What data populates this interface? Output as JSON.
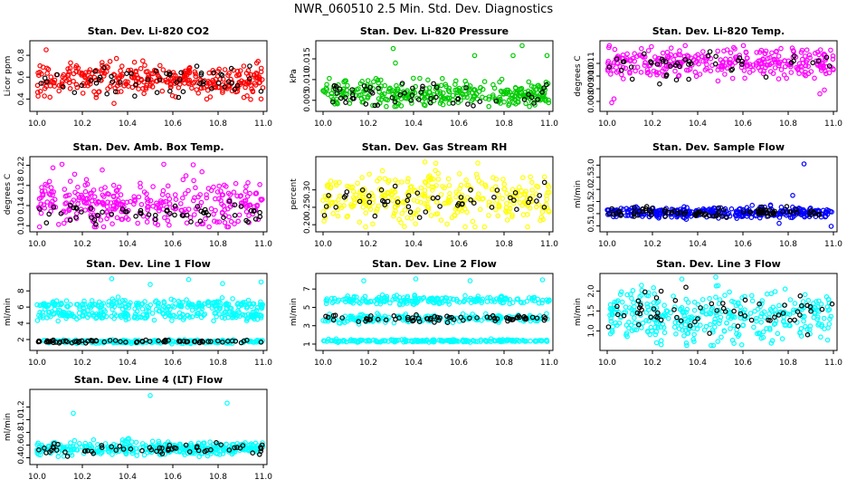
{
  "title": "NWR_060510  2.5 Min. Std. Dev. Diagnostics",
  "colors": {
    "black": "#000000",
    "red": "#ff0000",
    "green": "#00cc00",
    "magenta": "#ff00ff",
    "yellow": "#ffff00",
    "blue": "#0000ff",
    "cyan": "#00ffff"
  },
  "chart_data": [
    {
      "type": "scatter",
      "title": "Stan. Dev. Li-820 CO2",
      "ylabel": "Licor ppm",
      "color": "#ff0000",
      "xlim": [
        10.0,
        11.0
      ],
      "xticks": [
        "10.0",
        "10.2",
        "10.4",
        "10.6",
        "10.8",
        "11.0"
      ],
      "ylim": [
        0.32,
        0.9
      ],
      "yticks": [
        "0.4",
        "0.6",
        "0.8"
      ],
      "yvals": [
        0.4,
        0.6,
        0.8
      ],
      "bands": [
        {
          "center": 0.58,
          "spread": 0.08,
          "n": 340
        }
      ],
      "black": {
        "center": 0.57,
        "spread": 0.08,
        "n": 55
      },
      "outliers": [
        [
          10.04,
          0.85
        ],
        [
          10.34,
          0.36
        ],
        [
          10.99,
          0.4
        ]
      ]
    },
    {
      "type": "scatter",
      "title": "Stan. Dev. Li-820 Pressure",
      "ylabel": "kPa",
      "color": "#00cc00",
      "xlim": [
        10.0,
        11.0
      ],
      "xticks": [
        "10.0",
        "10.2",
        "10.4",
        "10.6",
        "10.8",
        "11.0"
      ],
      "ylim": [
        0.0032,
        0.0185
      ],
      "yticks": [
        "0.005",
        "0.010",
        "0.015"
      ],
      "yvals": [
        0.005,
        0.01,
        0.015
      ],
      "bands": [
        {
          "center": 0.0065,
          "spread": 0.0017,
          "n": 340
        }
      ],
      "black": {
        "center": 0.0065,
        "spread": 0.0016,
        "n": 55
      },
      "outliers": [
        [
          10.31,
          0.0175
        ],
        [
          10.32,
          0.014
        ],
        [
          10.67,
          0.0158
        ],
        [
          10.84,
          0.0158
        ],
        [
          10.88,
          0.0182
        ],
        [
          10.99,
          0.0158
        ]
      ]
    },
    {
      "type": "scatter",
      "title": "Stan. Dev. Li-820 Temp.",
      "ylabel": "degrees C",
      "color": "#ff00ff",
      "xlim": [
        10.0,
        11.0
      ],
      "xticks": [
        "10.0",
        "10.2",
        "10.4",
        "10.6",
        "10.8",
        "11.0"
      ],
      "ylim": [
        0.0075,
        0.0125
      ],
      "yticks": [
        "0.008",
        "0.009",
        "0.010",
        "0.011"
      ],
      "yvals": [
        0.008,
        0.009,
        0.01,
        0.011
      ],
      "bands": [
        {
          "center": 0.0111,
          "spread": 0.0007,
          "n": 320
        }
      ],
      "black": {
        "center": 0.0108,
        "spread": 0.0006,
        "n": 45
      },
      "outliers": [
        [
          10.02,
          0.0079
        ],
        [
          10.03,
          0.0082
        ],
        [
          10.94,
          0.0086
        ],
        [
          10.96,
          0.0089
        ]
      ]
    },
    {
      "type": "scatter",
      "title": "Stan. Dev. Amb. Box Temp.",
      "ylabel": "degrees C",
      "color": "#ff00ff",
      "xlim": [
        10.0,
        11.0
      ],
      "xticks": [
        "10.0",
        "10.2",
        "10.4",
        "10.6",
        "10.8",
        "11.0"
      ],
      "ylim": [
        0.095,
        0.23
      ],
      "yticks": [
        "0.10",
        "0.14",
        "0.18",
        "0.22"
      ],
      "yvals": [
        0.1,
        0.14,
        0.18,
        0.22
      ],
      "bands": [
        {
          "center": 0.145,
          "spread": 0.025,
          "n": 320
        }
      ],
      "black": {
        "center": 0.122,
        "spread": 0.012,
        "n": 60
      },
      "outliers": [
        [
          10.07,
          0.215
        ],
        [
          10.11,
          0.222
        ],
        [
          10.56,
          0.222
        ],
        [
          10.69,
          0.221
        ]
      ]
    },
    {
      "type": "scatter",
      "title": "Stan. Dev. Gas Stream RH",
      "ylabel": "percent",
      "color": "#ffff00",
      "xlim": [
        10.0,
        11.0
      ],
      "xticks": [
        "10.0",
        "10.2",
        "10.4",
        "10.6",
        "10.8",
        "11.0"
      ],
      "ylim": [
        0.19,
        0.385
      ],
      "yticks": [
        "0.20",
        "0.25",
        "0.30"
      ],
      "yvals": [
        0.2,
        0.25,
        0.3
      ],
      "bands": [
        {
          "center": 0.275,
          "spread": 0.04,
          "n": 340
        }
      ],
      "black": {
        "center": 0.27,
        "spread": 0.025,
        "n": 50
      },
      "outliers": [
        [
          10.45,
          0.38
        ]
      ]
    },
    {
      "type": "scatter",
      "title": "Stan. Dev. Sample Flow",
      "ylabel": "ml/min",
      "color": "#0000ff",
      "xlim": [
        10.0,
        11.0
      ],
      "xticks": [
        "10.0",
        "10.2",
        "10.4",
        "10.6",
        "10.8",
        "11.0"
      ],
      "ylim": [
        0.4,
        3.2
      ],
      "yticks": [
        "0.5",
        "1.0",
        "1.5",
        "2.0",
        "2.5",
        "3.0"
      ],
      "yvals": [
        0.5,
        1.0,
        1.5,
        2.0,
        2.5,
        3.0
      ],
      "bands": [
        {
          "center": 1.05,
          "spread": 0.12,
          "n": 340
        }
      ],
      "black": {
        "center": 1.05,
        "spread": 0.12,
        "n": 90
      },
      "outliers": [
        [
          10.87,
          3.05
        ],
        [
          10.82,
          1.75
        ],
        [
          10.76,
          0.6
        ],
        [
          10.99,
          0.48
        ]
      ]
    },
    {
      "type": "scatter",
      "title": "Stan. Dev. Line 1 Flow",
      "ylabel": "ml/min",
      "color": "#00ffff",
      "xlim": [
        10.0,
        11.0
      ],
      "xticks": [
        "10.0",
        "10.2",
        "10.4",
        "10.6",
        "10.8",
        "11.0"
      ],
      "ylim": [
        1.1,
        9.7
      ],
      "yticks": [
        "2",
        "4",
        "6",
        "8"
      ],
      "yvals": [
        2,
        4,
        6,
        8
      ],
      "bands": [
        {
          "center": 5.0,
          "spread": 0.35,
          "n": 200
        },
        {
          "center": 6.3,
          "spread": 0.35,
          "n": 200
        },
        {
          "center": 1.75,
          "spread": 0.12,
          "n": 200
        }
      ],
      "black": {
        "center": 1.75,
        "spread": 0.12,
        "n": 70
      },
      "outliers": [
        [
          10.33,
          9.5
        ],
        [
          10.5,
          8.8
        ],
        [
          10.67,
          9.4
        ],
        [
          10.82,
          8.9
        ],
        [
          10.99,
          9.1
        ]
      ]
    },
    {
      "type": "scatter",
      "title": "Stan. Dev. Line 2 Flow",
      "ylabel": "ml/min",
      "color": "#00ffff",
      "xlim": [
        10.0,
        11.0
      ],
      "xticks": [
        "10.0",
        "10.2",
        "10.4",
        "10.6",
        "10.8",
        "11.0"
      ],
      "ylim": [
        0.7,
        8.3
      ],
      "yticks": [
        "1",
        "3",
        "5",
        "7"
      ],
      "yvals": [
        1,
        3,
        5,
        7
      ],
      "bands": [
        {
          "center": 5.8,
          "spread": 0.25,
          "n": 200
        },
        {
          "center": 3.8,
          "spread": 0.25,
          "n": 200
        },
        {
          "center": 1.35,
          "spread": 0.08,
          "n": 200
        }
      ],
      "black": {
        "center": 3.8,
        "spread": 0.2,
        "n": 70
      },
      "outliers": [
        [
          10.18,
          7.9
        ],
        [
          10.41,
          8.1
        ],
        [
          10.65,
          7.9
        ],
        [
          10.97,
          8.0
        ]
      ]
    },
    {
      "type": "scatter",
      "title": "Stan. Dev. Line 3 Flow",
      "ylabel": "ml/min",
      "color": "#00ffff",
      "xlim": [
        10.0,
        11.0
      ],
      "xticks": [
        "10.0",
        "10.2",
        "10.4",
        "10.6",
        "10.8",
        "11.0"
      ],
      "ylim": [
        0.6,
        2.35
      ],
      "yticks": [
        "1.0",
        "1.5",
        "2.0"
      ],
      "yvals": [
        1.0,
        1.5,
        2.0
      ],
      "bands": [
        {
          "center": 1.35,
          "spread": 0.38,
          "n": 380
        }
      ],
      "black": {
        "center": 1.55,
        "spread": 0.3,
        "n": 60
      },
      "outliers": [
        [
          10.33,
          2.3
        ],
        [
          10.48,
          2.35
        ]
      ]
    },
    {
      "type": "scatter",
      "title": "Stan. Dev. Line 4 (LT) Flow",
      "ylabel": "ml/min",
      "color": "#00ffff",
      "xlim": [
        10.0,
        11.0
      ],
      "xticks": [
        "10.0",
        "10.2",
        "10.4",
        "10.6",
        "10.8",
        "11.0"
      ],
      "ylim": [
        0.35,
        1.42
      ],
      "yticks": [
        "0.4",
        "0.6",
        "0.8",
        "1.0",
        "1.2"
      ],
      "yvals": [
        0.4,
        0.6,
        0.8,
        1.0,
        1.2
      ],
      "bands": [
        {
          "center": 0.55,
          "spread": 0.06,
          "n": 360
        }
      ],
      "black": {
        "center": 0.54,
        "spread": 0.05,
        "n": 60
      },
      "outliers": [
        [
          10.16,
          1.1
        ],
        [
          10.5,
          1.38
        ],
        [
          10.84,
          1.26
        ]
      ]
    }
  ]
}
